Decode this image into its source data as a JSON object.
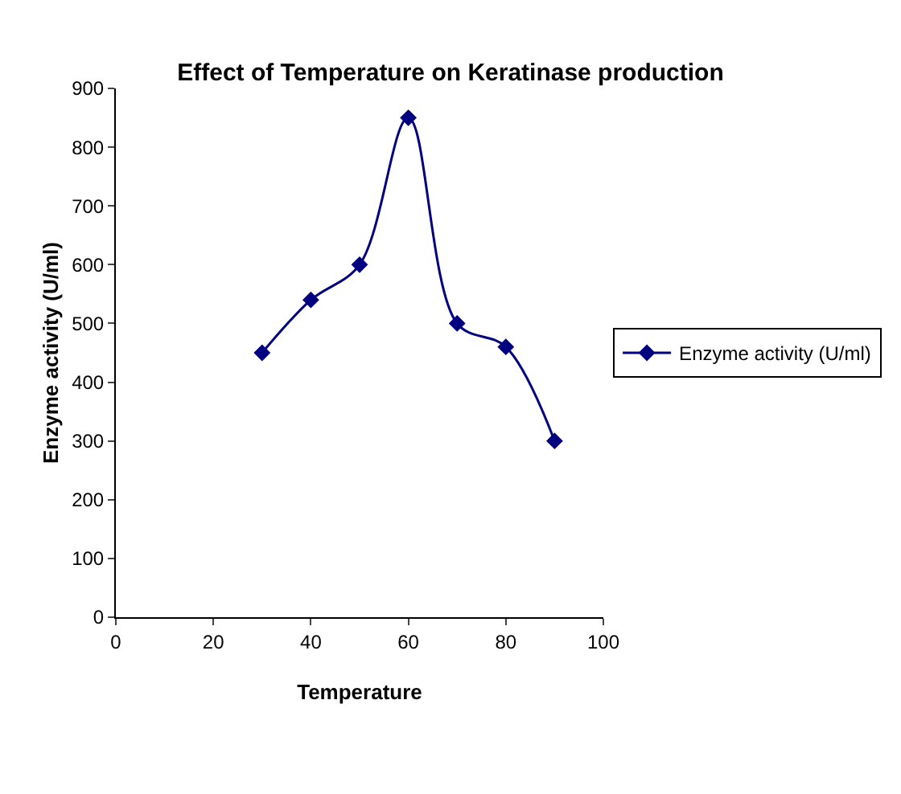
{
  "chart_data": {
    "type": "line",
    "title": "Effect of Temperature on Keratinase production",
    "xlabel": "Temperature",
    "ylabel": "Enzyme activity (U/ml)",
    "x": [
      30,
      40,
      50,
      60,
      70,
      80,
      90
    ],
    "series": [
      {
        "name": "Enzyme activity (U/ml)",
        "color": "#000080",
        "values": [
          450,
          540,
          600,
          850,
          500,
          460,
          300
        ]
      }
    ],
    "xlim": [
      0,
      100
    ],
    "xticks": [
      0,
      20,
      40,
      60,
      80,
      100
    ],
    "ylim": [
      0,
      900
    ],
    "yticks": [
      0,
      100,
      200,
      300,
      400,
      500,
      600,
      700,
      800,
      900
    ],
    "grid": false,
    "legend": "right",
    "marker": "diamond",
    "line_style": "solid"
  }
}
